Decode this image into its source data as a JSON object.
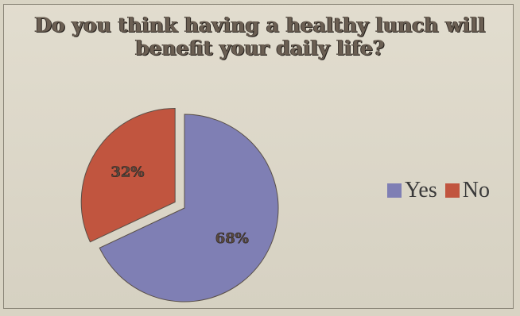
{
  "chart_data": {
    "type": "pie",
    "title": "Do you think having a healthy lunch will benefit your daily life?",
    "title_lines": [
      "Do you think having a healthy lunch will",
      "benefit your daily life?"
    ],
    "slices": [
      {
        "label": "Yes",
        "value": 68,
        "display": "68%",
        "color": "#7f7fb4",
        "exploded": false
      },
      {
        "label": "No",
        "value": 32,
        "display": "32%",
        "color": "#c1553f",
        "exploded": true
      }
    ],
    "legend_position": "right"
  }
}
